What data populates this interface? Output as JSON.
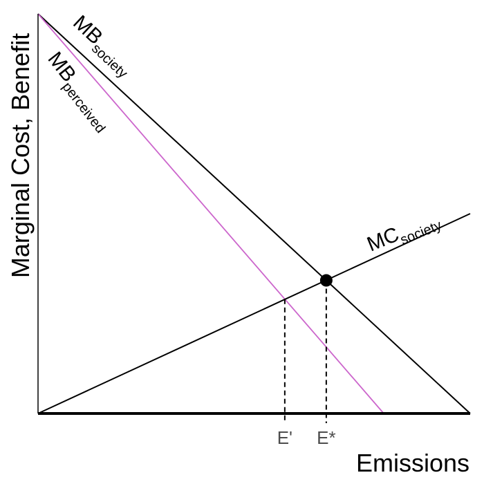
{
  "chart_data": {
    "type": "line",
    "xlabel": "Emissions",
    "ylabel": "Marginal Cost, Benefit",
    "xlim": [
      0,
      100
    ],
    "ylim": [
      0,
      100
    ],
    "grid": false,
    "series": [
      {
        "name": "MB",
        "name_subscript": "society",
        "color": "#000000",
        "x": [
          0,
          100
        ],
        "y": [
          100,
          0
        ]
      },
      {
        "name": "MB",
        "name_subscript": "perceived",
        "color": "#cc66cc",
        "x": [
          0,
          80
        ],
        "y": [
          100,
          0
        ]
      },
      {
        "name": "MC",
        "name_subscript": "society",
        "color": "#000000",
        "x": [
          0,
          100
        ],
        "y": [
          0,
          50
        ]
      }
    ],
    "equilibrium_point": {
      "x": 66.7,
      "y": 33.3
    },
    "x_ticks": [
      {
        "label": "E'",
        "value": 57.1,
        "y": 28.6
      },
      {
        "label": "E*",
        "value": 66.7,
        "y": 33.3
      }
    ]
  }
}
